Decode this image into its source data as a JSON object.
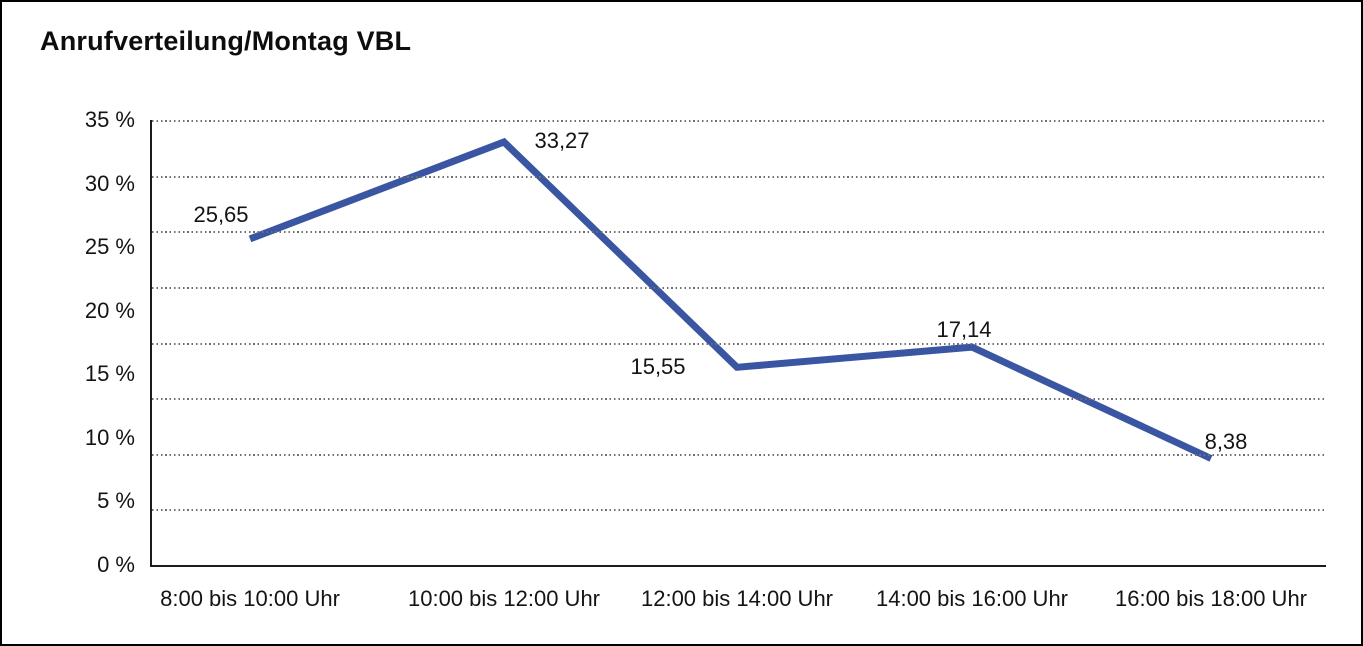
{
  "chart_data": {
    "type": "line",
    "title": "Anrufverteilung/Montag VBL",
    "categories": [
      "8:00 bis 10:00 Uhr",
      "10:00 bis 12:00 Uhr",
      "12:00 bis 14:00 Uhr",
      "14:00 bis 16:00 Uhr",
      "16:00 bis 18:00 Uhr"
    ],
    "values": [
      25.65,
      33.27,
      15.55,
      17.14,
      8.38
    ],
    "value_labels": [
      "25,65",
      "33,27",
      "15,55",
      "17,14",
      "8,38"
    ],
    "y_tick_labels": [
      "35 %",
      "30 %",
      "25 %",
      "20 %",
      "15 %",
      "10 %",
      "5 %",
      "0 %"
    ],
    "ylim": [
      0,
      35
    ],
    "xlabel": "",
    "ylabel": "",
    "grid": "horizontal-dotted",
    "legend": "none",
    "line_color": "#3A56A3",
    "axis_color": "#1c1c1c"
  }
}
